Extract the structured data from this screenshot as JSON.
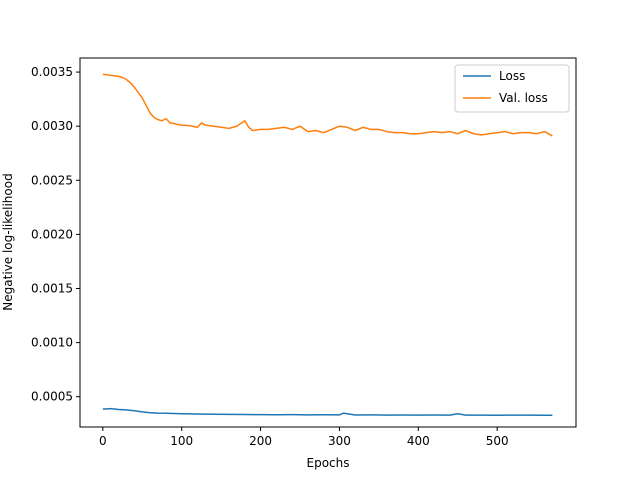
{
  "chart_data": {
    "type": "line",
    "title": "",
    "xlabel": "Epochs",
    "ylabel": "Negative log-likelihood",
    "xlim": [
      -29,
      600
    ],
    "ylim": [
      0.00022,
      0.00363
    ],
    "x_ticks": [
      0,
      100,
      200,
      300,
      400,
      500
    ],
    "x_tick_labels": [
      "0",
      "100",
      "200",
      "300",
      "400",
      "500"
    ],
    "y_ticks": [
      0.0005,
      0.001,
      0.0015,
      0.002,
      0.0025,
      0.003,
      0.0035
    ],
    "y_tick_labels": [
      "0.0005",
      "0.0010",
      "0.0015",
      "0.0020",
      "0.0025",
      "0.0030",
      "0.0035"
    ],
    "grid": false,
    "legend_position": "top-right",
    "series": [
      {
        "name": "Loss",
        "color": "#1f77b4",
        "x": [
          0,
          10,
          20,
          30,
          40,
          50,
          60,
          70,
          80,
          90,
          100,
          120,
          140,
          160,
          180,
          200,
          220,
          240,
          260,
          280,
          300,
          305,
          320,
          340,
          360,
          380,
          400,
          420,
          440,
          450,
          460,
          480,
          500,
          520,
          540,
          560,
          570
        ],
        "y": [
          0.000385,
          0.00039,
          0.000382,
          0.000378,
          0.00037,
          0.00036,
          0.000352,
          0.000348,
          0.000347,
          0.000345,
          0.000343,
          0.00034,
          0.000338,
          0.000337,
          0.000335,
          0.000334,
          0.000333,
          0.000334,
          0.000332,
          0.000333,
          0.000332,
          0.000348,
          0.000331,
          0.000332,
          0.00033,
          0.000331,
          0.00033,
          0.000331,
          0.00033,
          0.000342,
          0.00033,
          0.00033,
          0.000329,
          0.00033,
          0.00033,
          0.000329,
          0.000328
        ]
      },
      {
        "name": "Val. loss",
        "color": "#ff7f0e",
        "x": [
          0,
          5,
          10,
          15,
          20,
          25,
          30,
          35,
          40,
          45,
          50,
          55,
          60,
          65,
          70,
          75,
          80,
          85,
          90,
          95,
          100,
          110,
          120,
          125,
          130,
          140,
          150,
          160,
          170,
          180,
          185,
          190,
          200,
          210,
          220,
          230,
          240,
          250,
          260,
          270,
          280,
          290,
          300,
          310,
          320,
          330,
          340,
          350,
          360,
          370,
          380,
          390,
          400,
          410,
          420,
          430,
          440,
          450,
          460,
          470,
          480,
          490,
          500,
          510,
          520,
          530,
          540,
          550,
          560,
          570
        ],
        "y": [
          0.00348,
          0.003475,
          0.00347,
          0.003465,
          0.00346,
          0.00345,
          0.00343,
          0.0034,
          0.00336,
          0.00331,
          0.00326,
          0.00319,
          0.00312,
          0.00308,
          0.00306,
          0.00305,
          0.00307,
          0.00303,
          0.003025,
          0.003015,
          0.00301,
          0.003005,
          0.00299,
          0.00303,
          0.00301,
          0.003,
          0.00299,
          0.00298,
          0.003,
          0.00305,
          0.00299,
          0.00296,
          0.00297,
          0.00297,
          0.00298,
          0.00299,
          0.00297,
          0.003,
          0.00295,
          0.00296,
          0.00294,
          0.00297,
          0.003,
          0.00299,
          0.00296,
          0.00299,
          0.00297,
          0.00297,
          0.00295,
          0.00294,
          0.00294,
          0.00293,
          0.00293,
          0.00294,
          0.00295,
          0.00294,
          0.00295,
          0.00293,
          0.00296,
          0.00293,
          0.00292,
          0.00293,
          0.00294,
          0.00295,
          0.00293,
          0.00294,
          0.00294,
          0.00293,
          0.00295,
          0.00291
        ]
      }
    ]
  }
}
